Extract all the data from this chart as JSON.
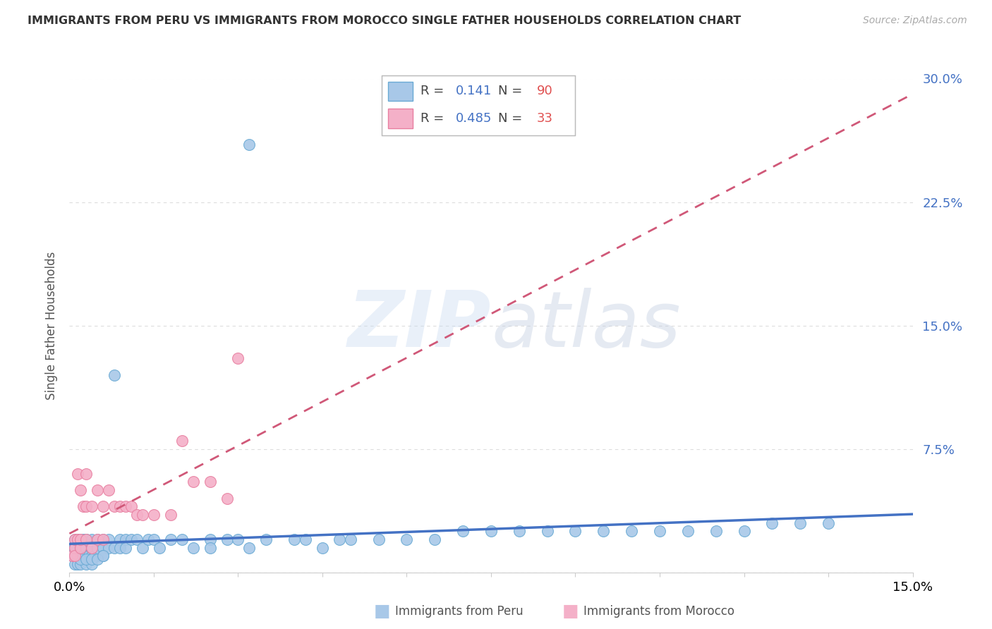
{
  "title": "IMMIGRANTS FROM PERU VS IMMIGRANTS FROM MOROCCO SINGLE FATHER HOUSEHOLDS CORRELATION CHART",
  "source": "Source: ZipAtlas.com",
  "ylabel_left": "Single Father Households",
  "legend_label1": "Immigrants from Peru",
  "legend_label2": "Immigrants from Morocco",
  "R1": 0.141,
  "N1": 90,
  "R2": 0.485,
  "N2": 33,
  "color1": "#a8c8e8",
  "color1_edge": "#6aaad4",
  "color2": "#f4b0c8",
  "color2_edge": "#e87fa0",
  "trendline1_color": "#4472c4",
  "trendline2_color": "#d05878",
  "xmin": 0.0,
  "xmax": 0.15,
  "ymin": 0.0,
  "ymax": 0.3,
  "grid_color": "#dddddd",
  "background_color": "#ffffff",
  "peru_x": [
    0.0005,
    0.0008,
    0.001,
    0.001,
    0.001,
    0.0012,
    0.0015,
    0.0015,
    0.0018,
    0.002,
    0.002,
    0.002,
    0.002,
    0.0022,
    0.0025,
    0.0025,
    0.003,
    0.003,
    0.003,
    0.003,
    0.003,
    0.0035,
    0.004,
    0.004,
    0.004,
    0.004,
    0.0045,
    0.005,
    0.005,
    0.005,
    0.005,
    0.006,
    0.006,
    0.006,
    0.007,
    0.007,
    0.008,
    0.008,
    0.009,
    0.009,
    0.01,
    0.01,
    0.011,
    0.012,
    0.013,
    0.014,
    0.015,
    0.016,
    0.018,
    0.02,
    0.022,
    0.025,
    0.025,
    0.028,
    0.03,
    0.032,
    0.035,
    0.032,
    0.04,
    0.042,
    0.045,
    0.048,
    0.05,
    0.055,
    0.06,
    0.065,
    0.07,
    0.075,
    0.08,
    0.085,
    0.09,
    0.095,
    0.1,
    0.105,
    0.11,
    0.115,
    0.12,
    0.125,
    0.13,
    0.135,
    0.001,
    0.0015,
    0.002,
    0.003,
    0.004,
    0.002,
    0.003,
    0.004,
    0.005,
    0.006
  ],
  "peru_y": [
    0.01,
    0.015,
    0.02,
    0.01,
    0.015,
    0.01,
    0.02,
    0.01,
    0.015,
    0.01,
    0.015,
    0.02,
    0.01,
    0.015,
    0.01,
    0.02,
    0.01,
    0.02,
    0.015,
    0.01,
    0.02,
    0.01,
    0.015,
    0.02,
    0.01,
    0.015,
    0.01,
    0.015,
    0.02,
    0.01,
    0.015,
    0.02,
    0.015,
    0.01,
    0.02,
    0.015,
    0.015,
    0.12,
    0.02,
    0.015,
    0.02,
    0.015,
    0.02,
    0.02,
    0.015,
    0.02,
    0.02,
    0.015,
    0.02,
    0.02,
    0.015,
    0.02,
    0.015,
    0.02,
    0.02,
    0.015,
    0.02,
    0.26,
    0.02,
    0.02,
    0.015,
    0.02,
    0.02,
    0.02,
    0.02,
    0.02,
    0.025,
    0.025,
    0.025,
    0.025,
    0.025,
    0.025,
    0.025,
    0.025,
    0.025,
    0.025,
    0.025,
    0.03,
    0.03,
    0.03,
    0.005,
    0.005,
    0.005,
    0.005,
    0.005,
    0.008,
    0.008,
    0.008,
    0.008,
    0.01
  ],
  "morocco_x": [
    0.0005,
    0.001,
    0.001,
    0.001,
    0.0015,
    0.0015,
    0.002,
    0.002,
    0.002,
    0.0025,
    0.003,
    0.003,
    0.003,
    0.004,
    0.004,
    0.005,
    0.005,
    0.006,
    0.006,
    0.007,
    0.008,
    0.009,
    0.01,
    0.011,
    0.012,
    0.013,
    0.015,
    0.018,
    0.02,
    0.022,
    0.025,
    0.028,
    0.03
  ],
  "morocco_y": [
    0.01,
    0.015,
    0.02,
    0.01,
    0.06,
    0.02,
    0.015,
    0.05,
    0.02,
    0.04,
    0.04,
    0.06,
    0.02,
    0.04,
    0.015,
    0.05,
    0.02,
    0.04,
    0.02,
    0.05,
    0.04,
    0.04,
    0.04,
    0.04,
    0.035,
    0.035,
    0.035,
    0.035,
    0.08,
    0.055,
    0.055,
    0.045,
    0.13
  ]
}
